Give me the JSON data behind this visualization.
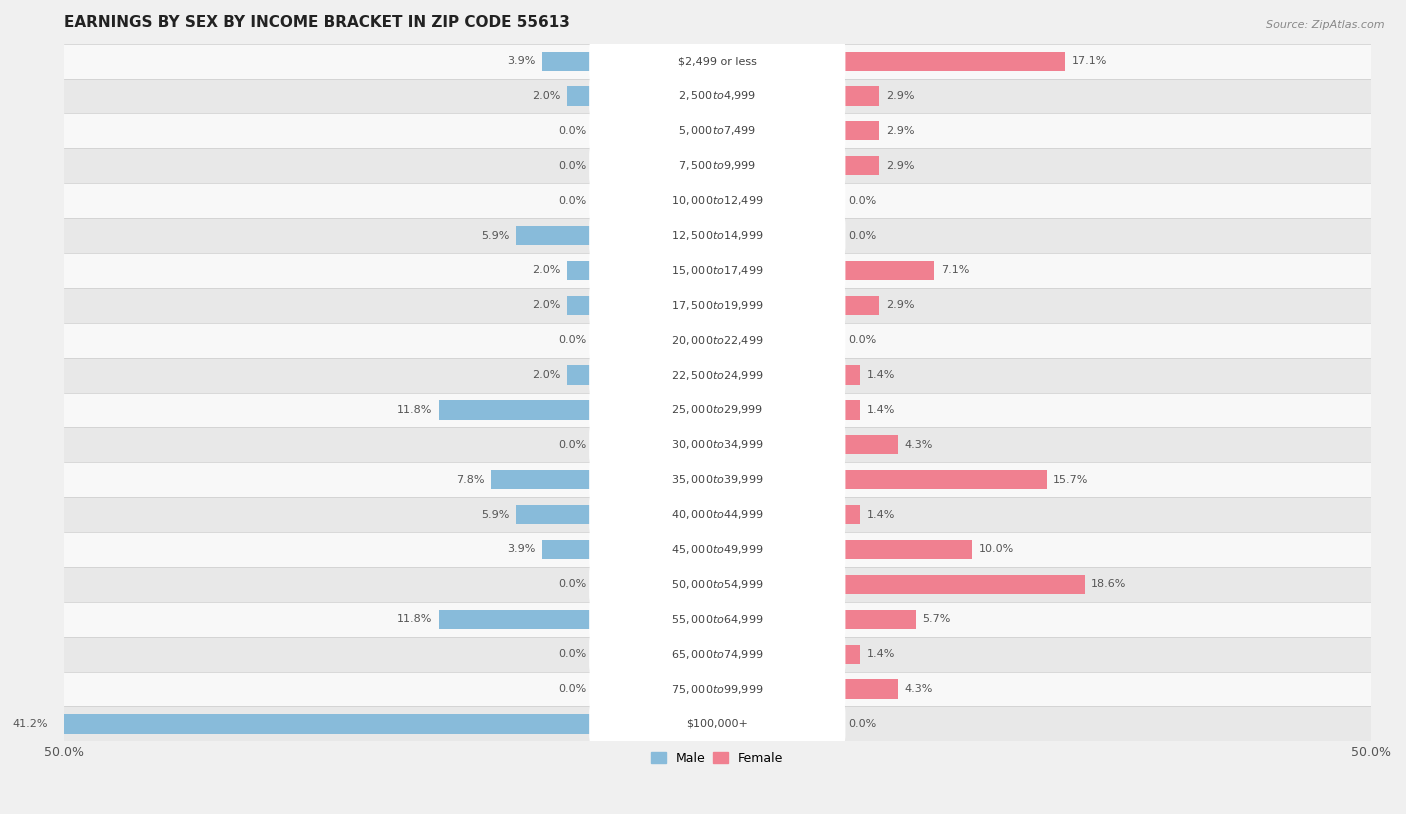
{
  "title": "EARNINGS BY SEX BY INCOME BRACKET IN ZIP CODE 55613",
  "source": "Source: ZipAtlas.com",
  "categories": [
    "$2,499 or less",
    "$2,500 to $4,999",
    "$5,000 to $7,499",
    "$7,500 to $9,999",
    "$10,000 to $12,499",
    "$12,500 to $14,999",
    "$15,000 to $17,499",
    "$17,500 to $19,999",
    "$20,000 to $22,499",
    "$22,500 to $24,999",
    "$25,000 to $29,999",
    "$30,000 to $34,999",
    "$35,000 to $39,999",
    "$40,000 to $44,999",
    "$45,000 to $49,999",
    "$50,000 to $54,999",
    "$55,000 to $64,999",
    "$65,000 to $74,999",
    "$75,000 to $99,999",
    "$100,000+"
  ],
  "male_values": [
    3.9,
    2.0,
    0.0,
    0.0,
    0.0,
    5.9,
    2.0,
    2.0,
    0.0,
    2.0,
    11.8,
    0.0,
    7.8,
    5.9,
    3.9,
    0.0,
    11.8,
    0.0,
    0.0,
    41.2
  ],
  "female_values": [
    17.1,
    2.9,
    2.9,
    2.9,
    0.0,
    0.0,
    7.1,
    2.9,
    0.0,
    1.4,
    1.4,
    4.3,
    15.7,
    1.4,
    10.0,
    18.6,
    5.7,
    1.4,
    4.3,
    0.0
  ],
  "male_color": "#88bbda",
  "female_color": "#f08090",
  "bar_height": 0.55,
  "xlim": 50.0,
  "background_color": "#f0f0f0",
  "row_light_color": "#f8f8f8",
  "row_dark_color": "#e8e8e8",
  "title_fontsize": 11,
  "label_fontsize": 8,
  "category_fontsize": 8,
  "source_fontsize": 8,
  "tick_fontsize": 9,
  "legend_fontsize": 9
}
